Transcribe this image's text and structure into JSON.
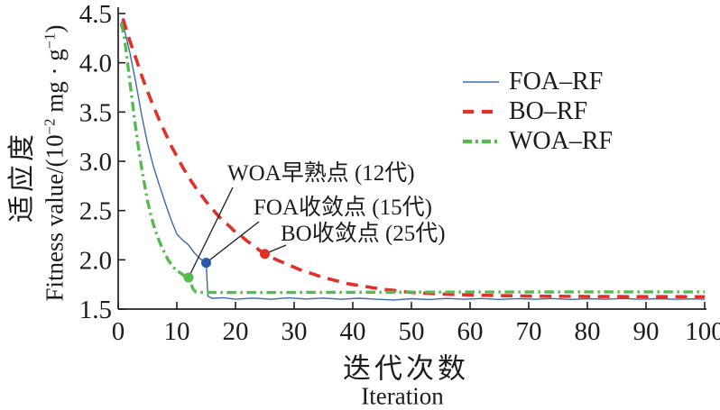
{
  "figure": {
    "background": "#FFFFFF",
    "text_color": "#1c1c1c",
    "axis_color": "#231F20"
  },
  "labels": {
    "y_cn": "适应度",
    "y_en_parts": {
      "p1": "Fitness value/(10",
      "sup1": "−2",
      "p2": " mg · g",
      "sup2": "−1",
      "p3": ")"
    },
    "x_cn": "迭代次数",
    "x_en": "Iteration"
  },
  "chart_data": {
    "type": "line",
    "xlabel": "迭代次数 / Iteration",
    "ylabel": "适应度 Fitness value/(10−2 mg·g−1)",
    "xlim": [
      0,
      100
    ],
    "ylim": [
      1.5,
      4.5
    ],
    "x_ticks": [
      0,
      10,
      20,
      30,
      40,
      50,
      60,
      70,
      80,
      90,
      100
    ],
    "y_ticks": [
      1.5,
      2.0,
      2.5,
      3.0,
      3.5,
      4.0,
      4.5
    ],
    "grid": false,
    "legend_position": "upper right",
    "series": [
      {
        "name": "FOA–RF",
        "color": "#3C68AE",
        "style": "solid",
        "points": [
          [
            0.5,
            4.42
          ],
          [
            1,
            4.35
          ],
          [
            2,
            4.1
          ],
          [
            3,
            3.8
          ],
          [
            4,
            3.47
          ],
          [
            5,
            3.18
          ],
          [
            6,
            2.95
          ],
          [
            7,
            2.76
          ],
          [
            8,
            2.58
          ],
          [
            9,
            2.41
          ],
          [
            10,
            2.26
          ],
          [
            11,
            2.2
          ],
          [
            12,
            2.15
          ],
          [
            13,
            2.07
          ],
          [
            14,
            2.01
          ],
          [
            15,
            1.97
          ],
          [
            15.3,
            1.63
          ],
          [
            16,
            1.61
          ],
          [
            18,
            1.615
          ],
          [
            20,
            1.6
          ],
          [
            23,
            1.612
          ],
          [
            26,
            1.6
          ],
          [
            29,
            1.613
          ],
          [
            32,
            1.602
          ],
          [
            35,
            1.612
          ],
          [
            38,
            1.6
          ],
          [
            41,
            1.61
          ],
          [
            44,
            1.6
          ],
          [
            47,
            1.592
          ],
          [
            50,
            1.605
          ],
          [
            53,
            1.597
          ],
          [
            56,
            1.608
          ],
          [
            59,
            1.6
          ],
          [
            62,
            1.607
          ],
          [
            65,
            1.598
          ],
          [
            68,
            1.606
          ],
          [
            71,
            1.6
          ],
          [
            74,
            1.607
          ],
          [
            77,
            1.598
          ],
          [
            80,
            1.605
          ],
          [
            83,
            1.6
          ],
          [
            86,
            1.607
          ],
          [
            89,
            1.6
          ],
          [
            92,
            1.605
          ],
          [
            95,
            1.6
          ],
          [
            98,
            1.603
          ],
          [
            100,
            1.6
          ]
        ]
      },
      {
        "name": "BO–RF",
        "color": "#E03028",
        "style": "dashed",
        "points": [
          [
            0.8,
            4.45
          ],
          [
            2,
            4.22
          ],
          [
            3,
            4.05
          ],
          [
            4,
            3.87
          ],
          [
            5,
            3.71
          ],
          [
            6,
            3.56
          ],
          [
            7,
            3.42
          ],
          [
            8,
            3.29
          ],
          [
            9,
            3.16
          ],
          [
            10,
            3.05
          ],
          [
            11,
            2.94
          ],
          [
            12,
            2.84
          ],
          [
            13,
            2.75
          ],
          [
            14,
            2.67
          ],
          [
            15,
            2.59
          ],
          [
            16,
            2.52
          ],
          [
            17,
            2.45
          ],
          [
            18,
            2.39
          ],
          [
            19,
            2.34
          ],
          [
            20,
            2.28
          ],
          [
            21,
            2.24
          ],
          [
            22,
            2.19
          ],
          [
            23,
            2.15
          ],
          [
            24,
            2.1
          ],
          [
            25,
            2.06
          ],
          [
            27,
            2.0
          ],
          [
            29,
            1.95
          ],
          [
            31,
            1.9
          ],
          [
            33,
            1.86
          ],
          [
            35,
            1.82
          ],
          [
            37,
            1.79
          ],
          [
            39,
            1.76
          ],
          [
            41,
            1.74
          ],
          [
            43,
            1.72
          ],
          [
            45,
            1.7
          ],
          [
            47,
            1.69
          ],
          [
            49,
            1.675
          ],
          [
            51,
            1.665
          ],
          [
            53,
            1.66
          ],
          [
            55,
            1.652
          ],
          [
            58,
            1.647
          ],
          [
            61,
            1.642
          ],
          [
            64,
            1.638
          ],
          [
            67,
            1.635
          ],
          [
            70,
            1.632
          ],
          [
            75,
            1.63
          ],
          [
            80,
            1.628
          ],
          [
            85,
            1.627
          ],
          [
            90,
            1.626
          ],
          [
            95,
            1.626
          ],
          [
            100,
            1.625
          ]
        ]
      },
      {
        "name": "WOA–RF",
        "color": "#56BB4E",
        "style": "dashdot",
        "points": [
          [
            0.5,
            4.4
          ],
          [
            1,
            4.28
          ],
          [
            1.5,
            4.05
          ],
          [
            2,
            3.8
          ],
          [
            2.5,
            3.56
          ],
          [
            3,
            3.33
          ],
          [
            3.5,
            3.12
          ],
          [
            4,
            2.93
          ],
          [
            4.5,
            2.76
          ],
          [
            5,
            2.6
          ],
          [
            5.5,
            2.47
          ],
          [
            6,
            2.36
          ],
          [
            6.5,
            2.27
          ],
          [
            7,
            2.19
          ],
          [
            7.5,
            2.12
          ],
          [
            8,
            2.06
          ],
          [
            8.5,
            2.0
          ],
          [
            9,
            1.96
          ],
          [
            9.5,
            1.92
          ],
          [
            10,
            1.89
          ],
          [
            10.5,
            1.87
          ],
          [
            11,
            1.85
          ],
          [
            11.5,
            1.83
          ],
          [
            12,
            1.82
          ],
          [
            12.4,
            1.76
          ],
          [
            12.8,
            1.7
          ],
          [
            13.2,
            1.675
          ],
          [
            14,
            1.67
          ],
          [
            16,
            1.669
          ],
          [
            20,
            1.668
          ],
          [
            25,
            1.668
          ],
          [
            30,
            1.669
          ],
          [
            35,
            1.67
          ],
          [
            40,
            1.67
          ],
          [
            45,
            1.671
          ],
          [
            50,
            1.672
          ],
          [
            55,
            1.672
          ],
          [
            60,
            1.673
          ],
          [
            65,
            1.673
          ],
          [
            70,
            1.674
          ],
          [
            75,
            1.674
          ],
          [
            80,
            1.675
          ],
          [
            85,
            1.675
          ],
          [
            90,
            1.675
          ],
          [
            95,
            1.675
          ],
          [
            100,
            1.675
          ]
        ]
      }
    ],
    "markers": [
      {
        "label": "WOA早熟点 (12代)",
        "x": 12,
        "y": 1.82,
        "color": "#56BB4E"
      },
      {
        "label": "FOA收敛点 (15代)",
        "x": 15,
        "y": 1.97,
        "color": "#2858A8"
      },
      {
        "label": "BO收敛点 (25代)",
        "x": 25,
        "y": 2.06,
        "color": "#E03028"
      }
    ]
  }
}
